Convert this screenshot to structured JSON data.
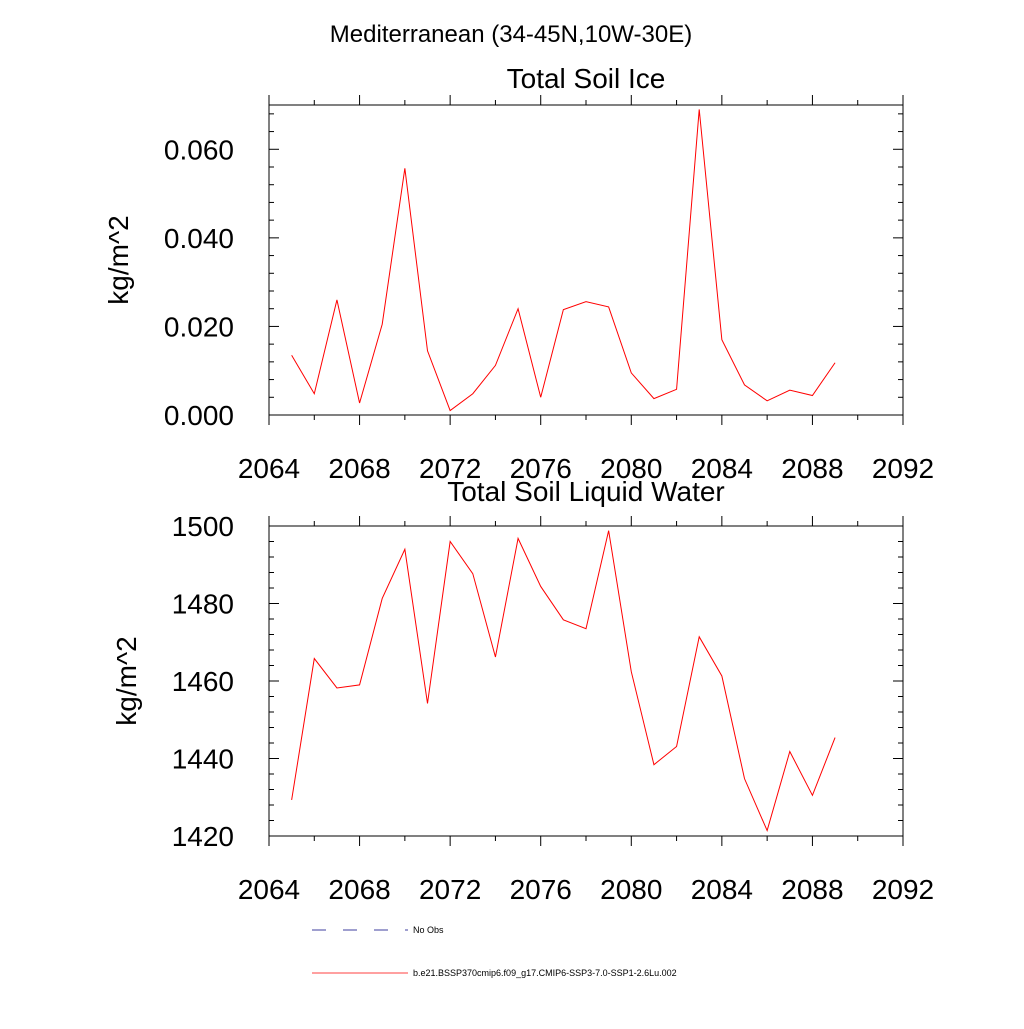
{
  "figure_title": "Mediterranean (34-45N,10W-30E)",
  "line_color": "#ff0000",
  "legend": [
    {
      "label": "No Obs",
      "style": "dashed",
      "color": "#000080"
    },
    {
      "label": "b.e21.BSSP370cmip6.f09_g17.CMIP6-SSP3-7.0-SSP1-2.6Lu.002",
      "style": "solid",
      "color": "#ff0000"
    }
  ],
  "chart_data": [
    {
      "type": "line",
      "title": "Total Soil Ice",
      "xlabel": "",
      "ylabel": "kg/m^2",
      "xlim": [
        2064,
        2092
      ],
      "ylim": [
        0,
        0.07
      ],
      "xticks": [
        2064,
        2068,
        2072,
        2076,
        2080,
        2084,
        2088,
        2092
      ],
      "yticks": [
        0,
        0.02,
        0.04,
        0.06
      ],
      "ytick_labels": [
        "0.000",
        "0.020",
        "0.040",
        "0.060"
      ],
      "x": [
        2065,
        2066,
        2067,
        2068,
        2069,
        2070,
        2071,
        2072,
        2073,
        2074,
        2075,
        2076,
        2077,
        2078,
        2079,
        2080,
        2081,
        2082,
        2083,
        2084,
        2085,
        2086,
        2087,
        2088,
        2089
      ],
      "series": [
        {
          "name": "b.e21.BSSP370cmip6.f09_g17.CMIP6-SSP3-7.0-SSP1-2.6Lu.002",
          "values": [
            0.0135,
            0.0048,
            0.026,
            0.0027,
            0.0205,
            0.0557,
            0.0145,
            0.001,
            0.0048,
            0.0112,
            0.024,
            0.004,
            0.0238,
            0.0256,
            0.0244,
            0.0095,
            0.0037,
            0.0058,
            0.069,
            0.017,
            0.0068,
            0.0032,
            0.0056,
            0.0044,
            0.0118
          ]
        }
      ],
      "grid": false
    },
    {
      "type": "line",
      "title": "Total Soil Liquid Water",
      "xlabel": "",
      "ylabel": "kg/m^2",
      "xlim": [
        2064,
        2092
      ],
      "ylim": [
        1420,
        1500
      ],
      "xticks": [
        2064,
        2068,
        2072,
        2076,
        2080,
        2084,
        2088,
        2092
      ],
      "yticks": [
        1420,
        1440,
        1460,
        1480,
        1500
      ],
      "ytick_labels": [
        "1420",
        "1440",
        "1460",
        "1480",
        "1500"
      ],
      "x": [
        2065,
        2066,
        2067,
        2068,
        2069,
        2070,
        2071,
        2072,
        2073,
        2074,
        2075,
        2076,
        2077,
        2078,
        2079,
        2080,
        2081,
        2082,
        2083,
        2084,
        2085,
        2086,
        2087,
        2088,
        2089
      ],
      "series": [
        {
          "name": "b.e21.BSSP370cmip6.f09_g17.CMIP6-SSP3-7.0-SSP1-2.6Lu.002",
          "values": [
            1429.3,
            1465.8,
            1458.2,
            1459.0,
            1481.3,
            1494.0,
            1454.2,
            1496.0,
            1487.7,
            1466.2,
            1496.8,
            1484.4,
            1475.8,
            1473.5,
            1498.8,
            1462.4,
            1438.4,
            1443.1,
            1471.4,
            1461.3,
            1434.8,
            1421.4,
            1441.8,
            1430.5,
            1445.4
          ]
        }
      ],
      "grid": false
    }
  ]
}
